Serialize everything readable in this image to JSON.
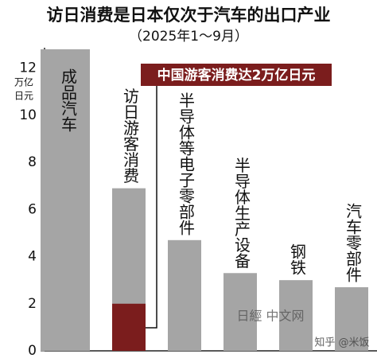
{
  "chart_data": {
    "type": "bar",
    "title": "访日消费是日本仅次于汽车的出口产业",
    "subtitle": "（2025年1～9月）",
    "y_label": [
      "万亿",
      "日元"
    ],
    "categories": [
      "成品汽车",
      "访日游客消费",
      "半导体等电子零部件",
      "半导体生产设备",
      "钢铁",
      "汽车零部件"
    ],
    "series": [
      {
        "color": "#a5a5a5",
        "values": [
          12.8,
          6.9,
          4.7,
          3.3,
          3.0,
          2.7
        ]
      },
      {
        "name": "中国游客消费达2万亿日元",
        "color": "#7b1d1d",
        "values": [
          null,
          2,
          null,
          null,
          null,
          null
        ]
      }
    ],
    "ylim": [
      0,
      13
    ],
    "yticks": [
      0,
      2,
      4,
      6,
      8,
      10,
      12
    ],
    "watermarks": [
      "日經 中文网",
      "知乎 @米饭"
    ]
  }
}
